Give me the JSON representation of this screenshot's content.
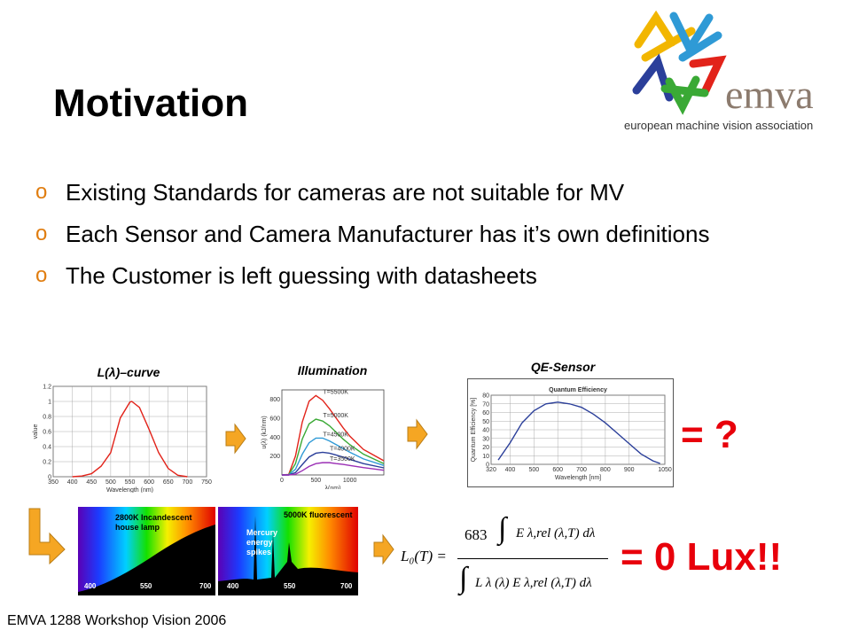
{
  "slide": {
    "title": "Motivation",
    "bullet_marker": "o",
    "bullets": [
      "Existing Standards for cameras are not suitable for MV",
      "Each Sensor and Camera Manufacturer has it’s own definitions",
      "The Customer is left guessing with datasheets"
    ],
    "footer": "EMVA 1288 Workshop Vision 2006"
  },
  "logo": {
    "name": "emva",
    "tagline": "european machine vision association",
    "colors": [
      "#f2b600",
      "#2f9ad6",
      "#e2231a",
      "#2b3f9a",
      "#3aa935"
    ]
  },
  "captions": {
    "l_curve": "L(λ)–curve",
    "illumination": "Illumination",
    "qe_sensor": "QE-Sensor"
  },
  "results": {
    "unknown": "= ?",
    "zero_lux": "= 0 Lux!!"
  },
  "spectra": {
    "left": {
      "label": "2800K Incandescent house lamp",
      "ticks": [
        "400",
        "550",
        "700"
      ]
    },
    "right": {
      "label": "5000K fluorescent",
      "note": "Mercury energy spikes",
      "ticks": [
        "400",
        "550",
        "700"
      ]
    }
  },
  "formula": {
    "lhs": "L₀(T) =",
    "numerator_coef": "683",
    "integrand_num": "E λ,rel (λ,T) dλ",
    "integrand_den": "L λ (λ) E λ,rel (λ,T) dλ"
  },
  "colors": {
    "accent": "#e07d10",
    "result_red": "#e8000b"
  },
  "chart_data": [
    {
      "type": "line",
      "xlabel": "Wavelength (nm)",
      "ylabel": "value",
      "xlim": [
        350,
        750
      ],
      "ylim": [
        0,
        1.2
      ],
      "x_ticks": [
        "350",
        "400",
        "450",
        "500",
        "550",
        "600",
        "650",
        "700",
        "750"
      ],
      "y_ticks": [
        "0",
        "0.2",
        "0.4",
        "0.6",
        "0.8",
        "1",
        "1.2"
      ],
      "grid": true,
      "series": [
        {
          "x": [
            400,
            425,
            450,
            475,
            500,
            525,
            550,
            555,
            575,
            600,
            625,
            650,
            675,
            700
          ],
          "y": [
            0.0,
            0.01,
            0.04,
            0.14,
            0.32,
            0.78,
            0.99,
            1.0,
            0.92,
            0.63,
            0.32,
            0.11,
            0.02,
            0.0
          ],
          "color": "#e2231a"
        }
      ]
    },
    {
      "type": "line",
      "xlabel": "λ(nm)",
      "ylabel": "u(λ) (kJ/nm)",
      "xlim": [
        0,
        1500
      ],
      "ylim": [
        0,
        900
      ],
      "x_ticks": [
        "0",
        "500",
        "1000"
      ],
      "y_ticks": [
        "200",
        "400",
        "600",
        "800"
      ],
      "grid": false,
      "series": [
        {
          "name": "T=5500K",
          "x": [
            0,
            100,
            200,
            300,
            400,
            500,
            600,
            700,
            800,
            900,
            1000,
            1200,
            1500
          ],
          "y": [
            0,
            5,
            200,
            560,
            780,
            840,
            790,
            700,
            600,
            500,
            410,
            270,
            150
          ],
          "color": "#e2231a"
        },
        {
          "name": "T=5000K",
          "x": [
            0,
            100,
            200,
            300,
            400,
            500,
            600,
            700,
            800,
            900,
            1000,
            1200,
            1500
          ],
          "y": [
            0,
            2,
            120,
            380,
            540,
            590,
            570,
            520,
            450,
            380,
            320,
            220,
            120
          ],
          "color": "#3aa935"
        },
        {
          "name": "T=4500K",
          "x": [
            0,
            100,
            200,
            300,
            400,
            500,
            600,
            700,
            800,
            900,
            1000,
            1200,
            1500
          ],
          "y": [
            0,
            1,
            60,
            220,
            340,
            390,
            390,
            360,
            320,
            280,
            240,
            170,
            100
          ],
          "color": "#2f9ad6"
        },
        {
          "name": "T=4000K",
          "x": [
            0,
            100,
            200,
            300,
            400,
            500,
            600,
            700,
            800,
            900,
            1000,
            1200,
            1500
          ],
          "y": [
            0,
            0,
            25,
            110,
            190,
            230,
            240,
            230,
            210,
            190,
            165,
            120,
            75
          ],
          "color": "#2b3f9a"
        },
        {
          "name": "T=3500K",
          "x": [
            0,
            100,
            200,
            300,
            400,
            500,
            600,
            700,
            800,
            900,
            1000,
            1200,
            1500
          ],
          "y": [
            0,
            0,
            8,
            45,
            90,
            120,
            130,
            130,
            120,
            112,
            100,
            78,
            50
          ],
          "color": "#9b2fb5"
        }
      ]
    },
    {
      "type": "line",
      "title": "Quantum Efficiency",
      "xlabel": "Wavelength [nm]",
      "ylabel": "Quantum Efficiency [%]",
      "xlim": [
        320,
        1050
      ],
      "ylim": [
        0,
        80
      ],
      "x_ticks": [
        "320",
        "400",
        "500",
        "600",
        "700",
        "800",
        "900",
        "1050"
      ],
      "y_ticks": [
        "0",
        "10",
        "20",
        "30",
        "40",
        "50",
        "60",
        "70",
        "80"
      ],
      "grid": true,
      "series": [
        {
          "x": [
            350,
            400,
            450,
            500,
            550,
            600,
            650,
            700,
            750,
            800,
            850,
            900,
            950,
            1000,
            1030
          ],
          "y": [
            5,
            25,
            48,
            62,
            70,
            72,
            70,
            66,
            58,
            48,
            36,
            24,
            12,
            4,
            1
          ],
          "color": "#2b3f9a"
        }
      ]
    }
  ]
}
